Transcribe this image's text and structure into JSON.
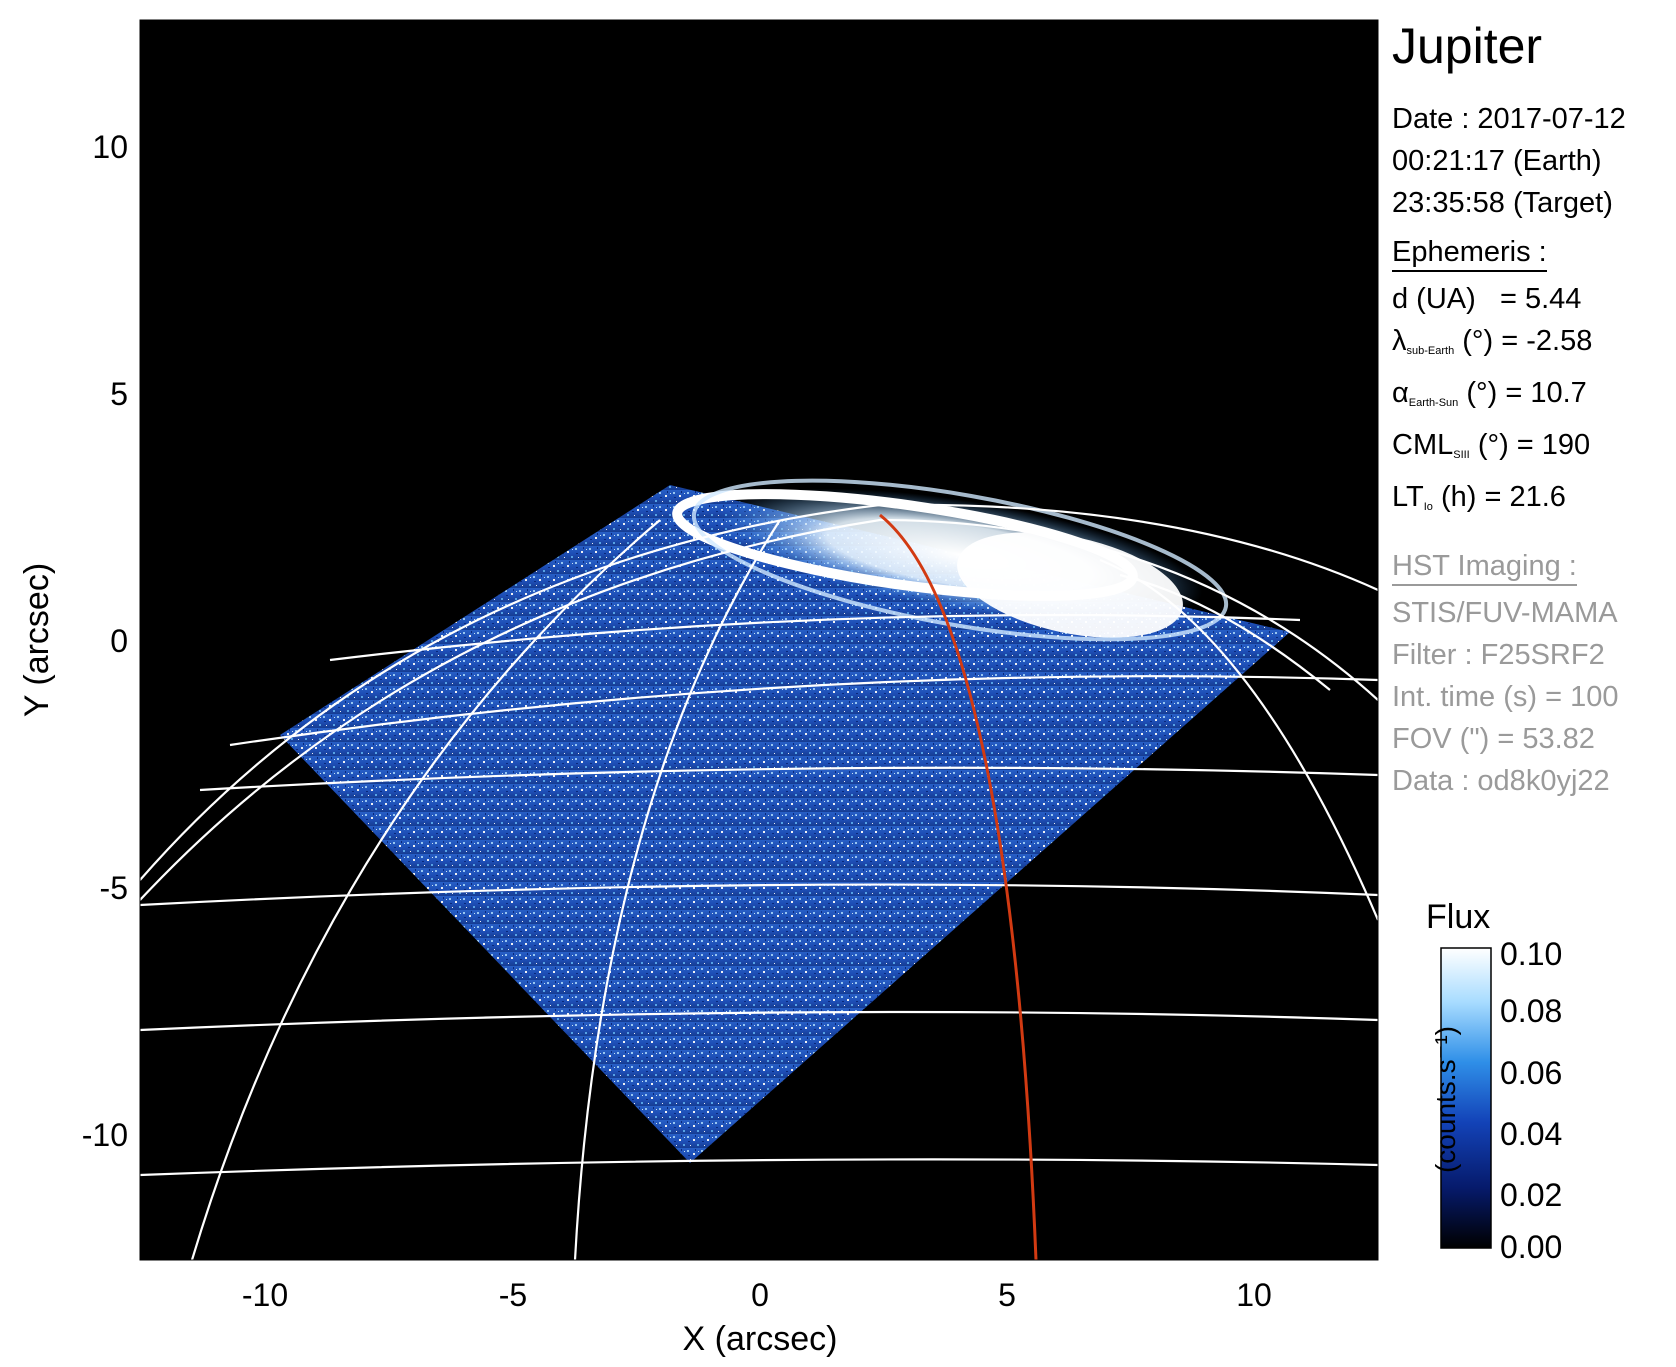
{
  "figure": {
    "xlabel": "X (arcsec)",
    "ylabel": "Y (arcsec)",
    "xticks": [
      "-10",
      "-5",
      "0",
      "5",
      "10"
    ],
    "yticks": [
      "10",
      "5",
      "0",
      "-5",
      "-10"
    ]
  },
  "panel": {
    "target": "Jupiter",
    "date_line": "Date : 2017-07-12",
    "time_earth": "00:21:17 (Earth)",
    "time_target": "23:35:58 (Target)",
    "ephemeris_header": "Ephemeris :",
    "d_label": "d (UA)",
    "d_value": "= 5.44",
    "lambda_symbol": "λ",
    "lambda_sub": "sub-Earth",
    "lambda_value": "(°) = -2.58",
    "alpha_symbol": "α",
    "alpha_sub": "Earth-Sun",
    "alpha_value": "(°) = 10.7",
    "cml_symbol": "CML",
    "cml_sub": "SIII",
    "cml_value": "(°) = 190",
    "lt_symbol": "LT",
    "lt_sub": "Io",
    "lt_value": "(h) = 21.6",
    "hst_header": "HST Imaging :",
    "instrument": "STIS/FUV-MAMA",
    "filter": "Filter : F25SRF2",
    "int_time": "Int. time (s) = 100",
    "fov": "FOV (\") = 53.82",
    "data_id": "Data : od8k0yj22"
  },
  "colorbar": {
    "title": "Flux",
    "unit": "(counts.s⁻¹)",
    "ticks": [
      "0.10",
      "0.08",
      "0.06",
      "0.04",
      "0.02",
      "0.00"
    ],
    "colors": [
      "#ffffff",
      "#a8dcff",
      "#2f8fe8",
      "#1343b8",
      "#061a6b",
      "#000000"
    ]
  },
  "colors": {
    "background": "#000000",
    "grid": "#ffffff",
    "meridian_highlight": "#d23a12"
  }
}
